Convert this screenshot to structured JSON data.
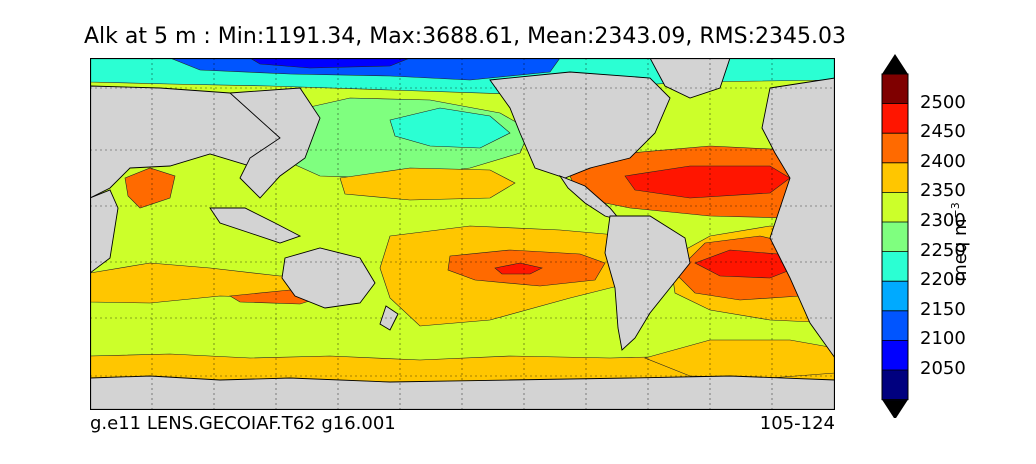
{
  "figure": {
    "title": "Alk at 5 m : Min:1191.34, Max:3688.61, Mean:2343.09, RMS:2345.03",
    "footer_left": "g.e11 LENS.GECOIAF.T62 g16.001",
    "footer_right": "105-124"
  },
  "colorbar": {
    "units_base": "meq m",
    "units_exp": "−3",
    "tick_labels": [
      "2500",
      "2450",
      "2400",
      "2350",
      "2300",
      "2250",
      "2200",
      "2150",
      "2100",
      "2050"
    ],
    "levels": [
      2000,
      2050,
      2100,
      2150,
      2200,
      2250,
      2300,
      2350,
      2400,
      2450,
      2500
    ],
    "colors": [
      "#00007f",
      "#0000ff",
      "#0055ff",
      "#00aaff",
      "#2bffd3",
      "#7fff7f",
      "#ccff2a",
      "#ffc600",
      "#ff6a00",
      "#ff1500",
      "#7f0000"
    ],
    "extend": "both"
  },
  "map": {
    "land_color": "#d3d3d3",
    "coastline_color": "#000000",
    "grid": "dashed"
  }
}
